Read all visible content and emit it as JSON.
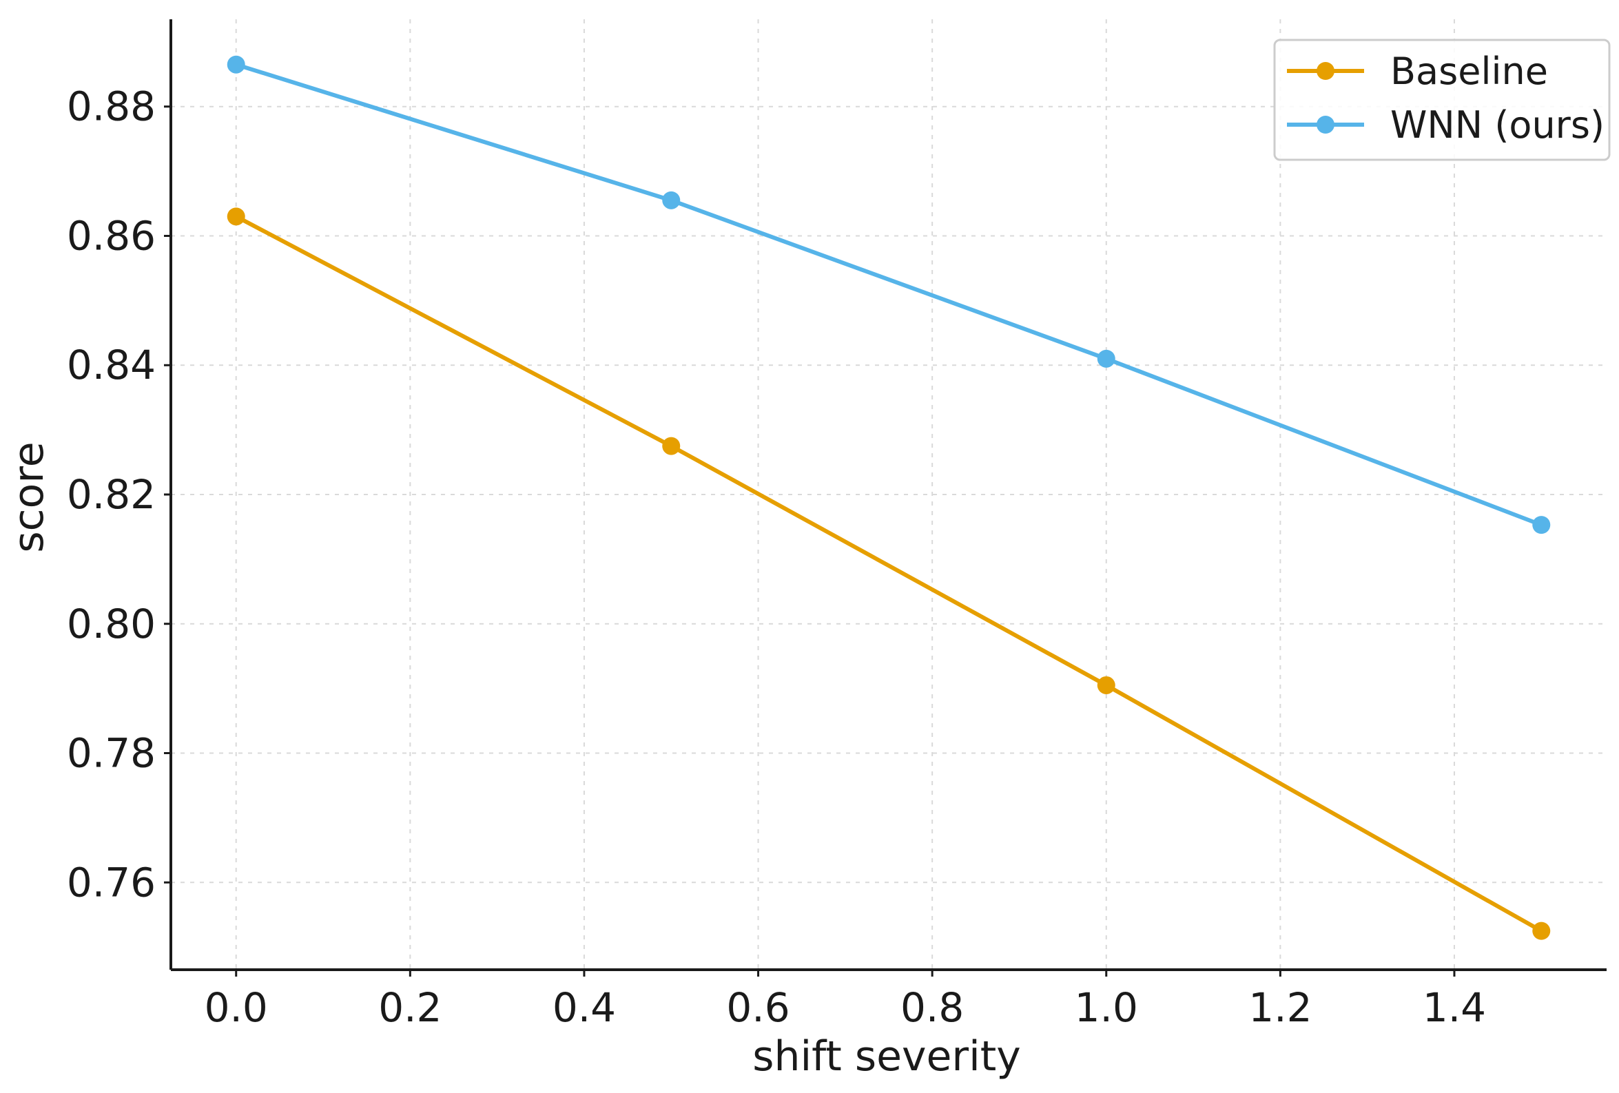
{
  "chart_data": {
    "type": "line",
    "title": "",
    "xlabel": "shift severity",
    "ylabel": "score",
    "x": [
      0.0,
      0.5,
      1.0,
      1.5
    ],
    "series": [
      {
        "name": "Baseline",
        "color": "#E69F00",
        "values": [
          0.863,
          0.8275,
          0.7905,
          0.7525
        ]
      },
      {
        "name": "WNN (ours)",
        "color": "#56B4E9",
        "values": [
          0.8865,
          0.8655,
          0.841,
          0.8153
        ]
      }
    ],
    "xlim": [
      -0.075,
      1.575
    ],
    "ylim": [
      0.7465,
      0.8935
    ],
    "xticks": [
      0.0,
      0.2,
      0.4,
      0.6,
      0.8,
      1.0,
      1.2,
      1.4
    ],
    "xtick_labels": [
      "0.0",
      "0.2",
      "0.4",
      "0.6",
      "0.8",
      "1.0",
      "1.2",
      "1.4"
    ],
    "yticks": [
      0.76,
      0.78,
      0.8,
      0.82,
      0.84,
      0.86,
      0.88
    ],
    "ytick_labels": [
      "0.76",
      "0.78",
      "0.80",
      "0.82",
      "0.84",
      "0.86",
      "0.88"
    ],
    "grid": true,
    "legend_position": "top-right",
    "marker": "circle"
  }
}
